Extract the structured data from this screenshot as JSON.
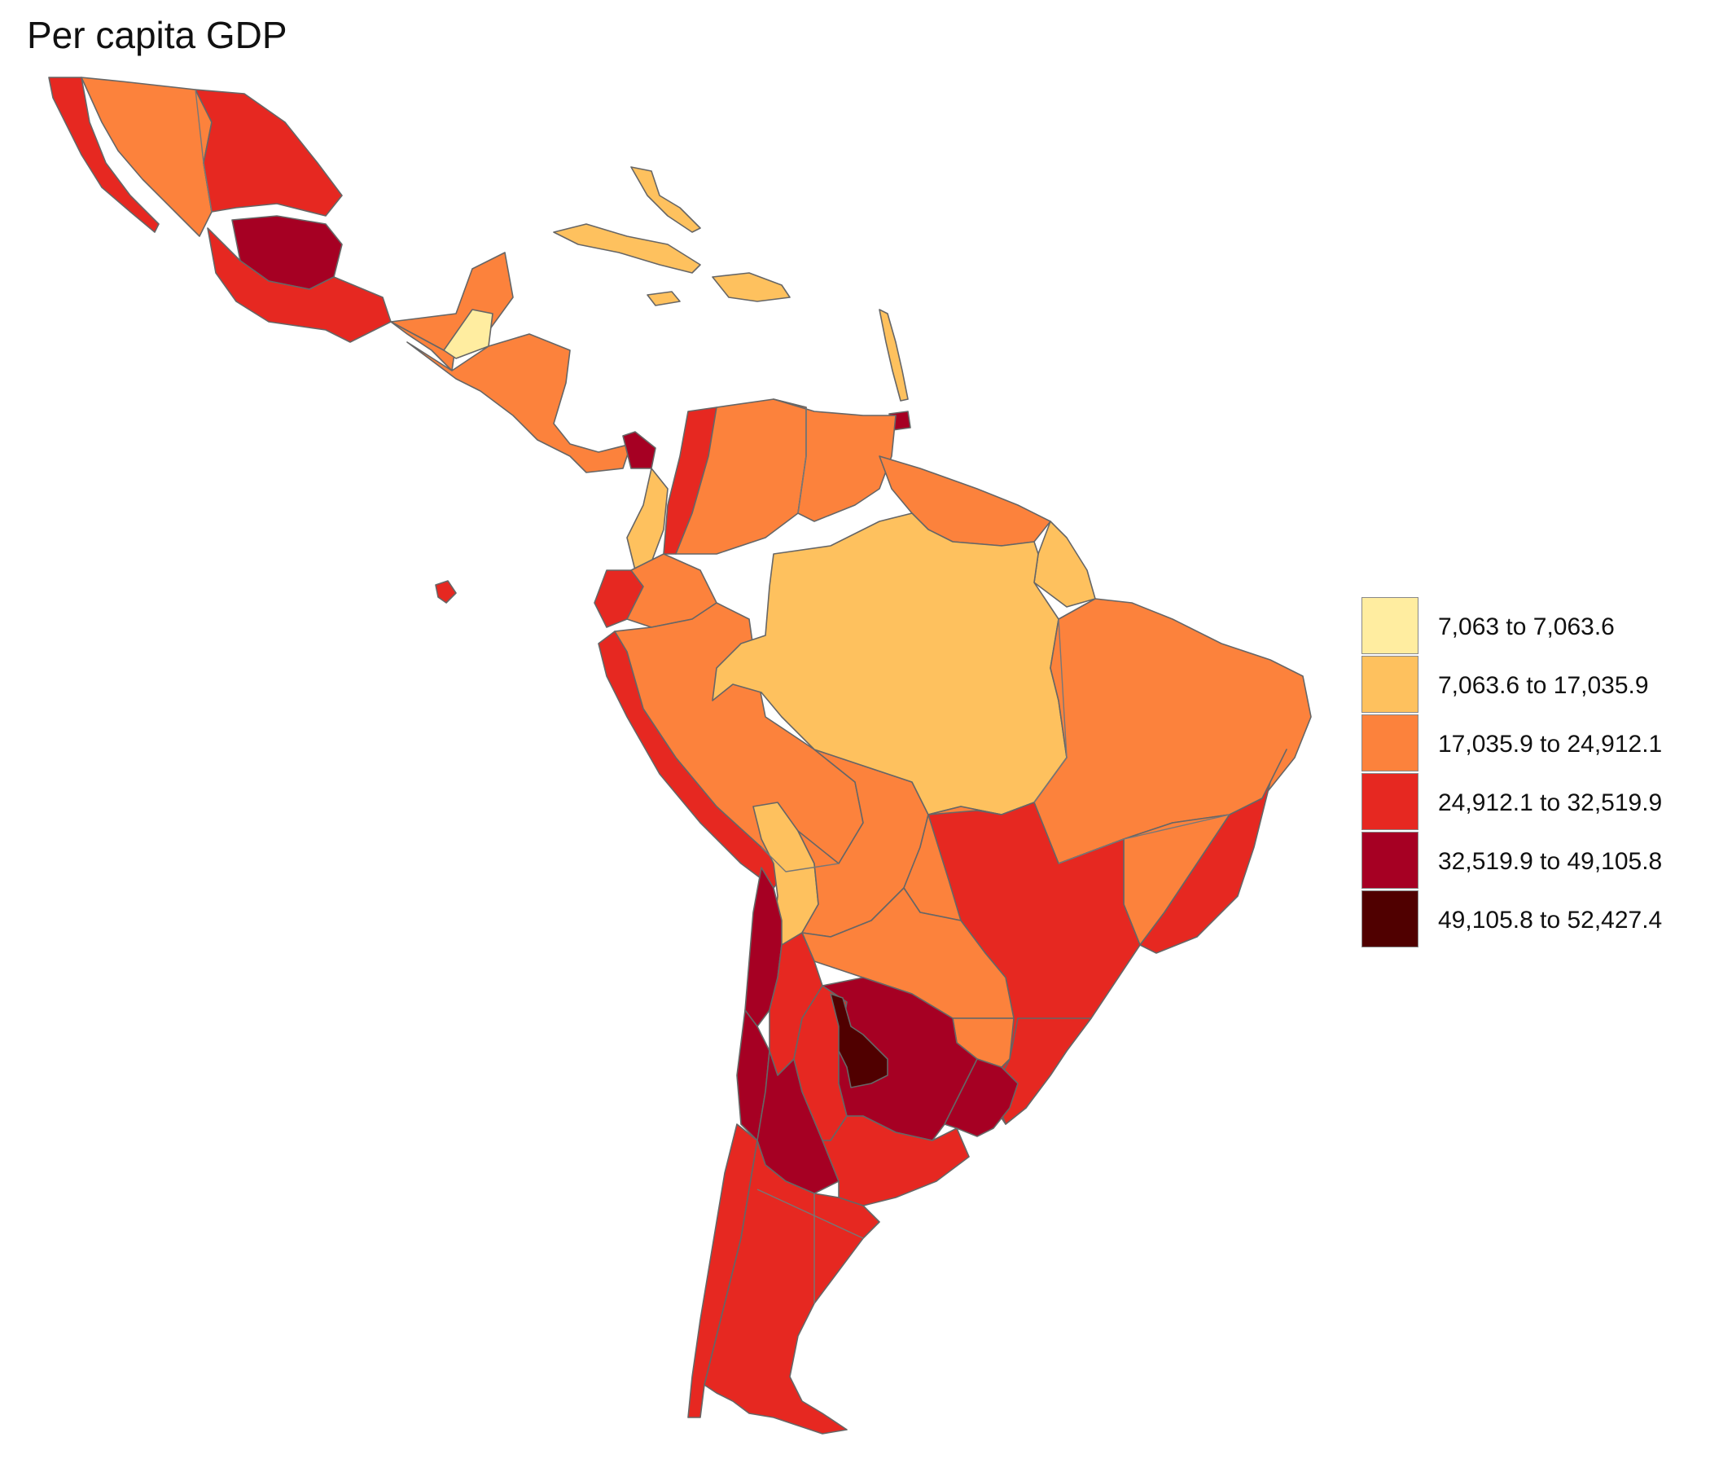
{
  "title": "Per capita GDP",
  "legend": {
    "classes": [
      {
        "label": "7,063 to 7,063.6",
        "color": "#FFEDA0"
      },
      {
        "label": "7,063.6 to 17,035.9",
        "color": "#FEC15E"
      },
      {
        "label": "17,035.9 to 24,912.1",
        "color": "#FC823C"
      },
      {
        "label": "24,912.1 to 32,519.9",
        "color": "#E62821"
      },
      {
        "label": "32,519.9 to 49,105.8",
        "color": "#A60023"
      },
      {
        "label": "49,105.8 to 52,427.4",
        "color": "#500000"
      }
    ]
  }
}
